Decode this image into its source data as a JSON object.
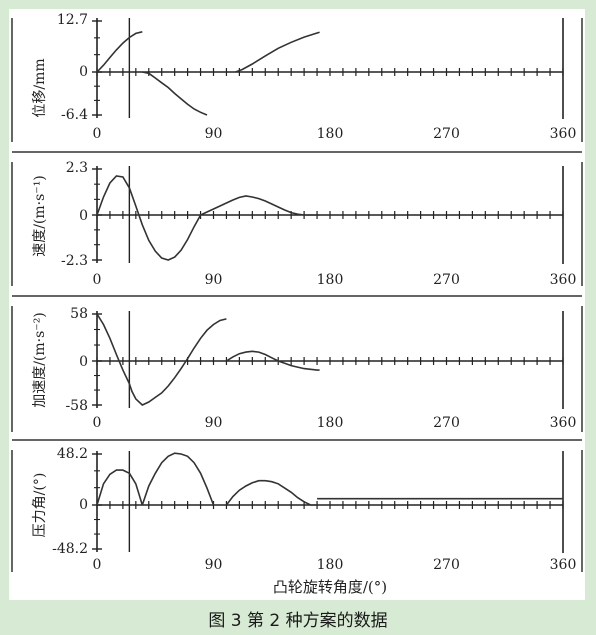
{
  "figure": {
    "caption": "图 3    第 2 种方案的数据",
    "xlabel": "凸轮旋转角度/(°)"
  },
  "chart_data": [
    {
      "type": "line",
      "ylabel": "位移/mm",
      "x_ticks": [
        "0",
        "90",
        "180",
        "270",
        "360"
      ],
      "y_ticks": [
        "12.7",
        "0",
        "-6.4"
      ],
      "xlim": [
        0,
        360
      ],
      "ylim": [
        -6.4,
        12.7
      ],
      "series": [
        {
          "x": [
            0,
            5,
            10,
            15,
            20,
            25,
            30,
            35
          ],
          "y": [
            0,
            1.7,
            3.6,
            5.5,
            7.2,
            8.6,
            9.6,
            10.0
          ]
        },
        {
          "x": [
            35,
            40,
            45,
            50,
            55,
            60,
            65,
            70,
            75,
            80,
            85
          ],
          "y": [
            0,
            -0.2,
            -0.9,
            -1.6,
            -2.3,
            -3.2,
            -4.0,
            -4.8,
            -5.5,
            -6.0,
            -6.4
          ]
        },
        {
          "x": [
            107,
            112,
            120,
            130,
            140,
            150,
            160,
            170,
            172
          ],
          "y": [
            0,
            0.6,
            2.0,
            4.0,
            5.9,
            7.4,
            8.7,
            9.7,
            9.9
          ]
        }
      ],
      "marker_x": 25
    },
    {
      "type": "line",
      "ylabel": "速度/(m·s⁻¹)",
      "x_ticks": [
        "0",
        "90",
        "180",
        "270",
        "360"
      ],
      "y_ticks": [
        "2.3",
        "0",
        "-2.3"
      ],
      "xlim": [
        0,
        360
      ],
      "ylim": [
        -2.3,
        2.3
      ],
      "series": [
        {
          "x": [
            0,
            5,
            10,
            15,
            20,
            25,
            30,
            35,
            40,
            45,
            50,
            55,
            60,
            65,
            70,
            75,
            80,
            85,
            90,
            95,
            100,
            105,
            110,
            115,
            120,
            125,
            130,
            135,
            140,
            145,
            150,
            155,
            160,
            165,
            170,
            172
          ],
          "y": [
            0,
            0.9,
            1.6,
            1.95,
            1.9,
            1.35,
            0.45,
            -0.5,
            -1.3,
            -1.85,
            -2.2,
            -2.3,
            -2.15,
            -1.8,
            -1.25,
            -0.6,
            0,
            0.15,
            0.3,
            0.45,
            0.6,
            0.75,
            0.88,
            0.95,
            0.9,
            0.82,
            0.7,
            0.55,
            0.4,
            0.25,
            0.12,
            0.04,
            0,
            0,
            0,
            0
          ]
        }
      ],
      "marker_x": 25
    },
    {
      "type": "line",
      "ylabel": "加速度/(m·s⁻²)",
      "x_ticks": [
        "0",
        "90",
        "180",
        "270",
        "360"
      ],
      "y_ticks": [
        "58",
        "0",
        "-58"
      ],
      "xlim": [
        0,
        360
      ],
      "ylim": [
        -58,
        58
      ],
      "series": [
        {
          "x": [
            0,
            5,
            10,
            15,
            20,
            25,
            27,
            30,
            35,
            40,
            45,
            50,
            55,
            60,
            65,
            70,
            75,
            80,
            85,
            90,
            95,
            100
          ],
          "y": [
            58,
            45,
            28,
            8,
            -12,
            -30,
            -40,
            -50,
            -58,
            -54,
            -48,
            -42,
            -33,
            -22,
            -10,
            3,
            16,
            28,
            38,
            45,
            50,
            52
          ]
        },
        {
          "x": [
            100,
            105,
            110,
            115,
            120,
            125,
            130,
            135,
            140,
            145,
            150,
            155,
            160,
            165,
            170,
            172
          ],
          "y": [
            0,
            5,
            9,
            11,
            12,
            11,
            8,
            4,
            0,
            -3,
            -6,
            -8,
            -10,
            -11,
            -12,
            -12
          ]
        }
      ],
      "marker_x": 25
    },
    {
      "type": "line",
      "ylabel": "压力角/(°)",
      "x_ticks": [
        "0",
        "90",
        "180",
        "270",
        "360"
      ],
      "y_ticks": [
        "48.2",
        "0",
        "-48.2"
      ],
      "xlim": [
        0,
        360
      ],
      "ylim": [
        -48.2,
        48.2
      ],
      "series": [
        {
          "x": [
            0,
            5,
            10,
            15,
            20,
            25,
            30,
            35
          ],
          "y": [
            0,
            20,
            29,
            33,
            33,
            30,
            20,
            0
          ]
        },
        {
          "x": [
            35,
            40,
            45,
            50,
            55,
            60,
            65,
            70,
            75,
            80,
            85,
            90
          ],
          "y": [
            0,
            18,
            30,
            40,
            46,
            49,
            48.2,
            46,
            40,
            30,
            16,
            0
          ]
        },
        {
          "x": [
            100,
            105,
            110,
            115,
            120,
            125,
            130,
            135,
            140,
            145,
            150,
            155,
            160,
            165,
            170
          ],
          "y": [
            0,
            8,
            14,
            18,
            21,
            23,
            23,
            22,
            20,
            16,
            12,
            7,
            3,
            0,
            0
          ]
        },
        {
          "x": [
            170,
            180,
            200,
            240,
            300,
            360
          ],
          "y": [
            6,
            6,
            6,
            6,
            6,
            6
          ]
        }
      ],
      "marker_x": 25
    }
  ]
}
